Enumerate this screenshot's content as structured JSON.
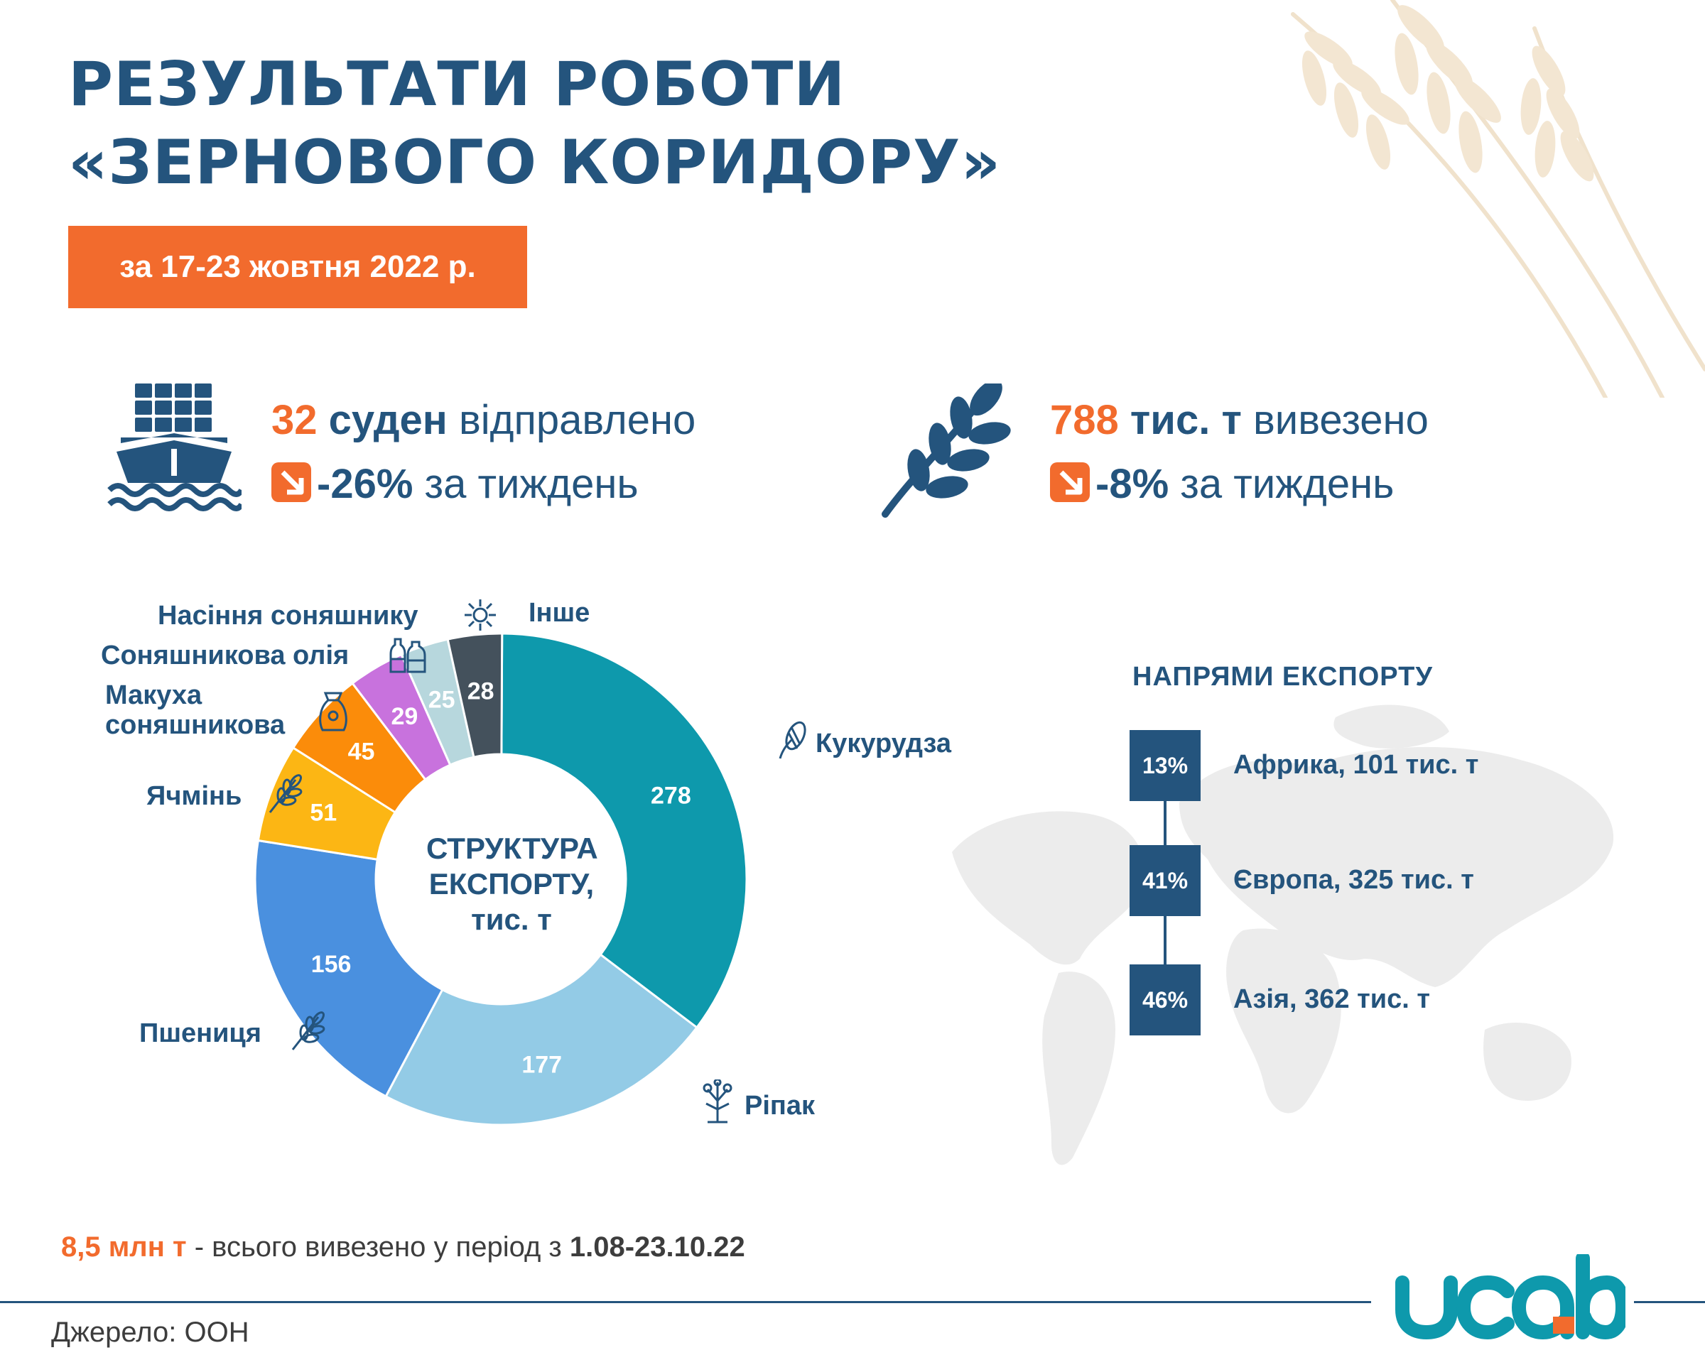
{
  "header": {
    "title_line1": "РЕЗУЛЬТАТИ РОБОТИ",
    "title_line2": "«ЗЕРНОВОГО КОРИДОРУ»",
    "period": "за 17-23 жовтня 2022 р."
  },
  "stats": {
    "ships": {
      "value": "32",
      "unit": "суден",
      "label": "відправлено",
      "change": "-26%",
      "change_label": "за тиждень",
      "icon": "cargo-ship-icon"
    },
    "volume": {
      "value": "788",
      "unit": "тис. т",
      "label": "вивезено",
      "change": "-8%",
      "change_label": "за тиждень",
      "icon": "wheat-ear-icon"
    },
    "decrease_icon": "arrow-down-right-icon"
  },
  "chart_data": {
    "type": "pie",
    "title": "СТРУКТУРА ЕКСПОРТУ, тис. т",
    "title_lines": [
      "СТРУКТУРА",
      "ЕКСПОРТУ,",
      "тис. т"
    ],
    "categories": [
      "Кукурудза",
      "Ріпак",
      "Пшениця",
      "Ячмінь",
      "Макуха соняшникова",
      "Соняшникова олія",
      "Насіння соняшнику",
      "Інше"
    ],
    "values": [
      278,
      177,
      156,
      51,
      45,
      29,
      25,
      28
    ],
    "colors": [
      "#0e99ac",
      "#93cbe6",
      "#4a90df",
      "#fcb614",
      "#fb8c0a",
      "#c872dd",
      "#b7d7dd",
      "#44515c"
    ],
    "label_colors": [
      "#ffffff",
      "#ffffff",
      "#ffffff",
      "#ffffff",
      "#ffffff",
      "#ffffff",
      "#ffffff",
      "#ffffff"
    ],
    "category_icons": [
      "corn-icon",
      "rapeseed-icon",
      "wheat-icon",
      "barley-icon",
      "feed-bag-icon",
      "oil-bottles-icon",
      "sunflower-icon",
      ""
    ],
    "label_lines": {
      "makukha_1": "Макуха",
      "makukha_2": "соняшникова"
    }
  },
  "directions": {
    "title": "НАПРЯМИ ЕКСПОРТУ",
    "items": [
      {
        "pct": "13%",
        "label": "Африка, 101 тис. т"
      },
      {
        "pct": "41%",
        "label": "Європа, 325 тис. т"
      },
      {
        "pct": "46%",
        "label": "Азія, 362 тис. т"
      }
    ],
    "map_icon": "world-map-icon"
  },
  "footer": {
    "total_value": "8,5 млн т",
    "total_text": " - всього вивезено у період з ",
    "total_period": "1.08-23.10.22",
    "source": "Джерело: ООН",
    "logo_text": "ucab"
  },
  "colors": {
    "navy": "#24547d",
    "orange": "#f26b2d",
    "teal": "#0e99ac"
  }
}
